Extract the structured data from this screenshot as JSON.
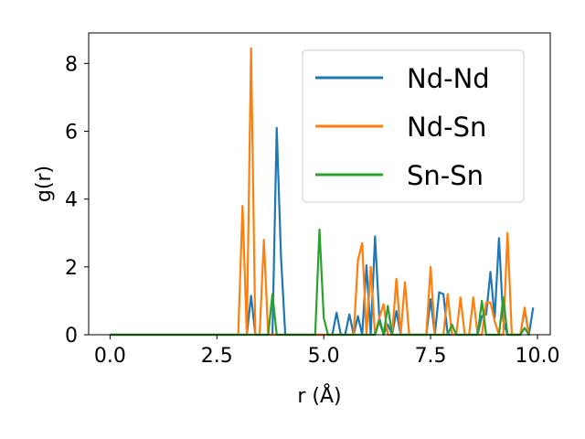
{
  "chart_data": {
    "type": "line",
    "xlabel": "r (Å)",
    "ylabel": "g(r)",
    "xlim": [
      -0.5,
      10.3
    ],
    "ylim": [
      0,
      8.9
    ],
    "xticks": [
      0,
      2.5,
      5,
      7.5,
      10
    ],
    "xtick_labels": [
      "0.0",
      "2.5",
      "5.0",
      "7.5",
      "10.0"
    ],
    "yticks": [
      0,
      2,
      4,
      6,
      8
    ],
    "ytick_labels": [
      "0",
      "2",
      "4",
      "6",
      "8"
    ],
    "grid": false,
    "legend_position": "top-right",
    "series": [
      {
        "name": "Nd-Nd",
        "color": "#1f77b4",
        "x": [
          0,
          3.2,
          3.3,
          3.4,
          3.8,
          3.9,
          4.0,
          4.1,
          5.2,
          5.3,
          5.4,
          5.5,
          5.6,
          5.7,
          5.8,
          5.9,
          6.0,
          6.1,
          6.2,
          6.3,
          6.4,
          6.5,
          6.6,
          6.7,
          6.8,
          7.4,
          7.5,
          7.6,
          7.7,
          7.8,
          7.9,
          8.6,
          8.7,
          8.8,
          8.9,
          9.0,
          9.1,
          9.2,
          9.3,
          9.6,
          9.7,
          9.8,
          9.9
        ],
        "y": [
          0,
          0,
          1.15,
          0,
          0,
          6.1,
          2.3,
          0,
          0,
          0.65,
          0,
          0,
          0.6,
          0,
          0.55,
          0,
          2.05,
          0,
          2.9,
          0.5,
          0,
          0.3,
          0,
          0.7,
          0,
          0,
          1.05,
          0,
          1.25,
          1.2,
          0,
          0,
          0.55,
          0.6,
          1.85,
          0.5,
          2.85,
          0.4,
          0,
          0,
          0.75,
          0,
          0.8
        ]
      },
      {
        "name": "Nd-Sn",
        "color": "#ff7f0e",
        "x": [
          0,
          3.0,
          3.1,
          3.2,
          3.3,
          3.4,
          3.5,
          3.6,
          3.7,
          5.7,
          5.8,
          5.9,
          6.0,
          6.1,
          6.2,
          6.3,
          6.4,
          6.5,
          6.6,
          6.7,
          6.8,
          6.9,
          7.0,
          7.4,
          7.5,
          7.6,
          7.7,
          7.8,
          7.9,
          8.0,
          8.1,
          8.2,
          8.3,
          8.4,
          8.5,
          8.6,
          8.7,
          8.8,
          8.9,
          9.0,
          9.1,
          9.2,
          9.3,
          9.4,
          9.5,
          9.6,
          9.7,
          9.8
        ],
        "y": [
          0,
          0,
          3.8,
          0,
          8.45,
          0,
          0,
          2.8,
          0,
          0,
          2.2,
          2.7,
          0,
          2.0,
          0,
          0.5,
          0.9,
          0,
          0,
          1.65,
          0,
          1.55,
          0,
          0,
          2.0,
          0,
          0,
          0,
          1.2,
          0,
          0,
          1.1,
          0,
          0,
          1.1,
          0,
          0,
          0.95,
          0.95,
          0.4,
          0,
          0,
          3.0,
          0,
          0,
          0,
          0.8,
          0
        ]
      },
      {
        "name": "Sn-Sn",
        "color": "#2ca02c",
        "x": [
          0,
          3.7,
          3.8,
          3.9,
          4.0,
          4.8,
          4.9,
          5.0,
          5.1,
          6.2,
          6.3,
          6.4,
          6.5,
          6.6,
          7.9,
          8.0,
          8.1,
          8.6,
          8.7,
          8.8,
          9.1,
          9.2,
          9.3,
          9.6,
          9.7,
          9.8
        ],
        "y": [
          0,
          0,
          1.2,
          0,
          0,
          0,
          3.1,
          0.5,
          0,
          0,
          0.4,
          0,
          0.85,
          0,
          0,
          0.3,
          0,
          0,
          1.0,
          0,
          0,
          1.1,
          0,
          0,
          0.2,
          0
        ]
      }
    ]
  }
}
